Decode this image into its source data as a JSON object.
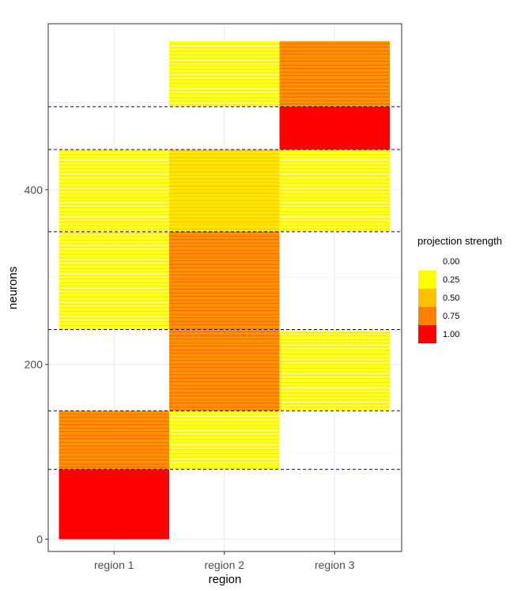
{
  "chart_data": {
    "type": "heatmap",
    "xlabel": "region",
    "ylabel": "neurons",
    "categories": [
      "region 1",
      "region 2",
      "region 3"
    ],
    "ylim": [
      -14,
      590
    ],
    "yticks": [
      0,
      200,
      400
    ],
    "grid": true,
    "legend": {
      "title": "projection strength",
      "position": "right",
      "entries": [
        {
          "label": "0.00",
          "color": "#FFFFFF"
        },
        {
          "label": "0.25",
          "color": "#FFFF00"
        },
        {
          "label": "0.50",
          "color": "#FFC000"
        },
        {
          "label": "0.75",
          "color": "#FF7F00"
        },
        {
          "label": "1.00",
          "color": "#FF0000"
        }
      ]
    },
    "cluster_boundaries": [
      80,
      147,
      240,
      352,
      446,
      495
    ],
    "blocks": [
      {
        "region": "region 1",
        "y0": 0,
        "y1": 80,
        "strength": 1.0
      },
      {
        "region": "region 1",
        "y0": 80,
        "y1": 147,
        "strength": 0.75
      },
      {
        "region": "region 1",
        "y0": 240,
        "y1": 352,
        "strength": 0.25
      },
      {
        "region": "region 1",
        "y0": 352,
        "y1": 446,
        "strength": 0.25
      },
      {
        "region": "region 2",
        "y0": 80,
        "y1": 147,
        "strength": 0.2
      },
      {
        "region": "region 2",
        "y0": 147,
        "y1": 240,
        "strength": 0.7
      },
      {
        "region": "region 2",
        "y0": 240,
        "y1": 352,
        "strength": 0.7
      },
      {
        "region": "region 2",
        "y0": 352,
        "y1": 446,
        "strength": 0.4
      },
      {
        "region": "region 2",
        "y0": 495,
        "y1": 570,
        "strength": 0.2
      },
      {
        "region": "region 3",
        "y0": 147,
        "y1": 240,
        "strength": 0.25
      },
      {
        "region": "region 3",
        "y0": 352,
        "y1": 446,
        "strength": 0.3
      },
      {
        "region": "region 3",
        "y0": 446,
        "y1": 495,
        "strength": 1.0
      },
      {
        "region": "region 3",
        "y0": 495,
        "y1": 570,
        "strength": 0.7
      }
    ]
  }
}
